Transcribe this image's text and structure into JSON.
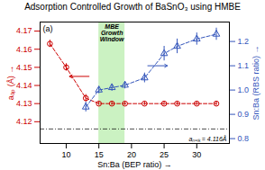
{
  "chart_data": {
    "type": "line",
    "title": "Adsorption Controlled Growth of BaSnO₃ using HMBE",
    "panel_label": "(a)",
    "xlabel": "Sn:Ba (BEP ratio)",
    "ylabel": "aₒₚ (Å)",
    "y2label": "Sn:Ba (RBS ratio)",
    "xlim": [
      6,
      35
    ],
    "xticks": [
      10,
      15,
      20,
      25,
      30
    ],
    "ylim": [
      4.108,
      4.175
    ],
    "yticks": [
      4.12,
      4.13,
      4.14,
      4.15,
      4.16,
      4.17
    ],
    "y2lim": [
      0.78,
      1.28
    ],
    "y2ticks": [
      0.8,
      0.9,
      {
        "value": 1,
        "label": "1.0"
      },
      1.1,
      1.2
    ],
    "shaded_regions": [
      {
        "x": [
          15,
          19
        ],
        "color": "#a0e890",
        "label": "MBE\nGrowth\nWindow"
      }
    ],
    "reference_lines": [
      {
        "y": 4.116,
        "label": "aₙᵤₗₖ = 4.116Å",
        "line_style": "dashdot"
      }
    ],
    "series": [
      {
        "x": [
          7.5,
          10,
          13,
          15,
          17,
          19,
          22,
          25,
          27,
          30,
          33
        ],
        "values": [
          4.163,
          4.15,
          4.133,
          4.13,
          4.13,
          4.13,
          4.13,
          4.13,
          4.13,
          4.13,
          4.13
        ],
        "errors": [
          0.002,
          0.002,
          0.002,
          0.001,
          0.001,
          0.001,
          0.001,
          0.001,
          0.001,
          0.001,
          0.001
        ],
        "color": "#cc0000",
        "marker": "circle",
        "line_style": "dashed"
      },
      {
        "x": [
          13,
          15,
          17,
          19,
          22,
          25,
          27,
          30,
          33
        ],
        "values": [
          0.93,
          1.0,
          1.01,
          1.02,
          1.05,
          1.15,
          1.18,
          1.21,
          1.23
        ],
        "errors": [
          0.02,
          0.015,
          0.015,
          0.015,
          0.02,
          0.03,
          0.03,
          0.025,
          0.025
        ],
        "color": "#3355bb",
        "marker": "triangle",
        "line_style": "dashed",
        "axis": "y2"
      }
    ],
    "arrows": [
      {
        "x_from": 13.5,
        "x_to": 10.5,
        "y": 4.145,
        "color": "#cc0000"
      },
      {
        "x_from": 22.5,
        "x_to": 25.5,
        "y": 1.1,
        "color": "#3355bb",
        "axis": "y2"
      }
    ]
  }
}
